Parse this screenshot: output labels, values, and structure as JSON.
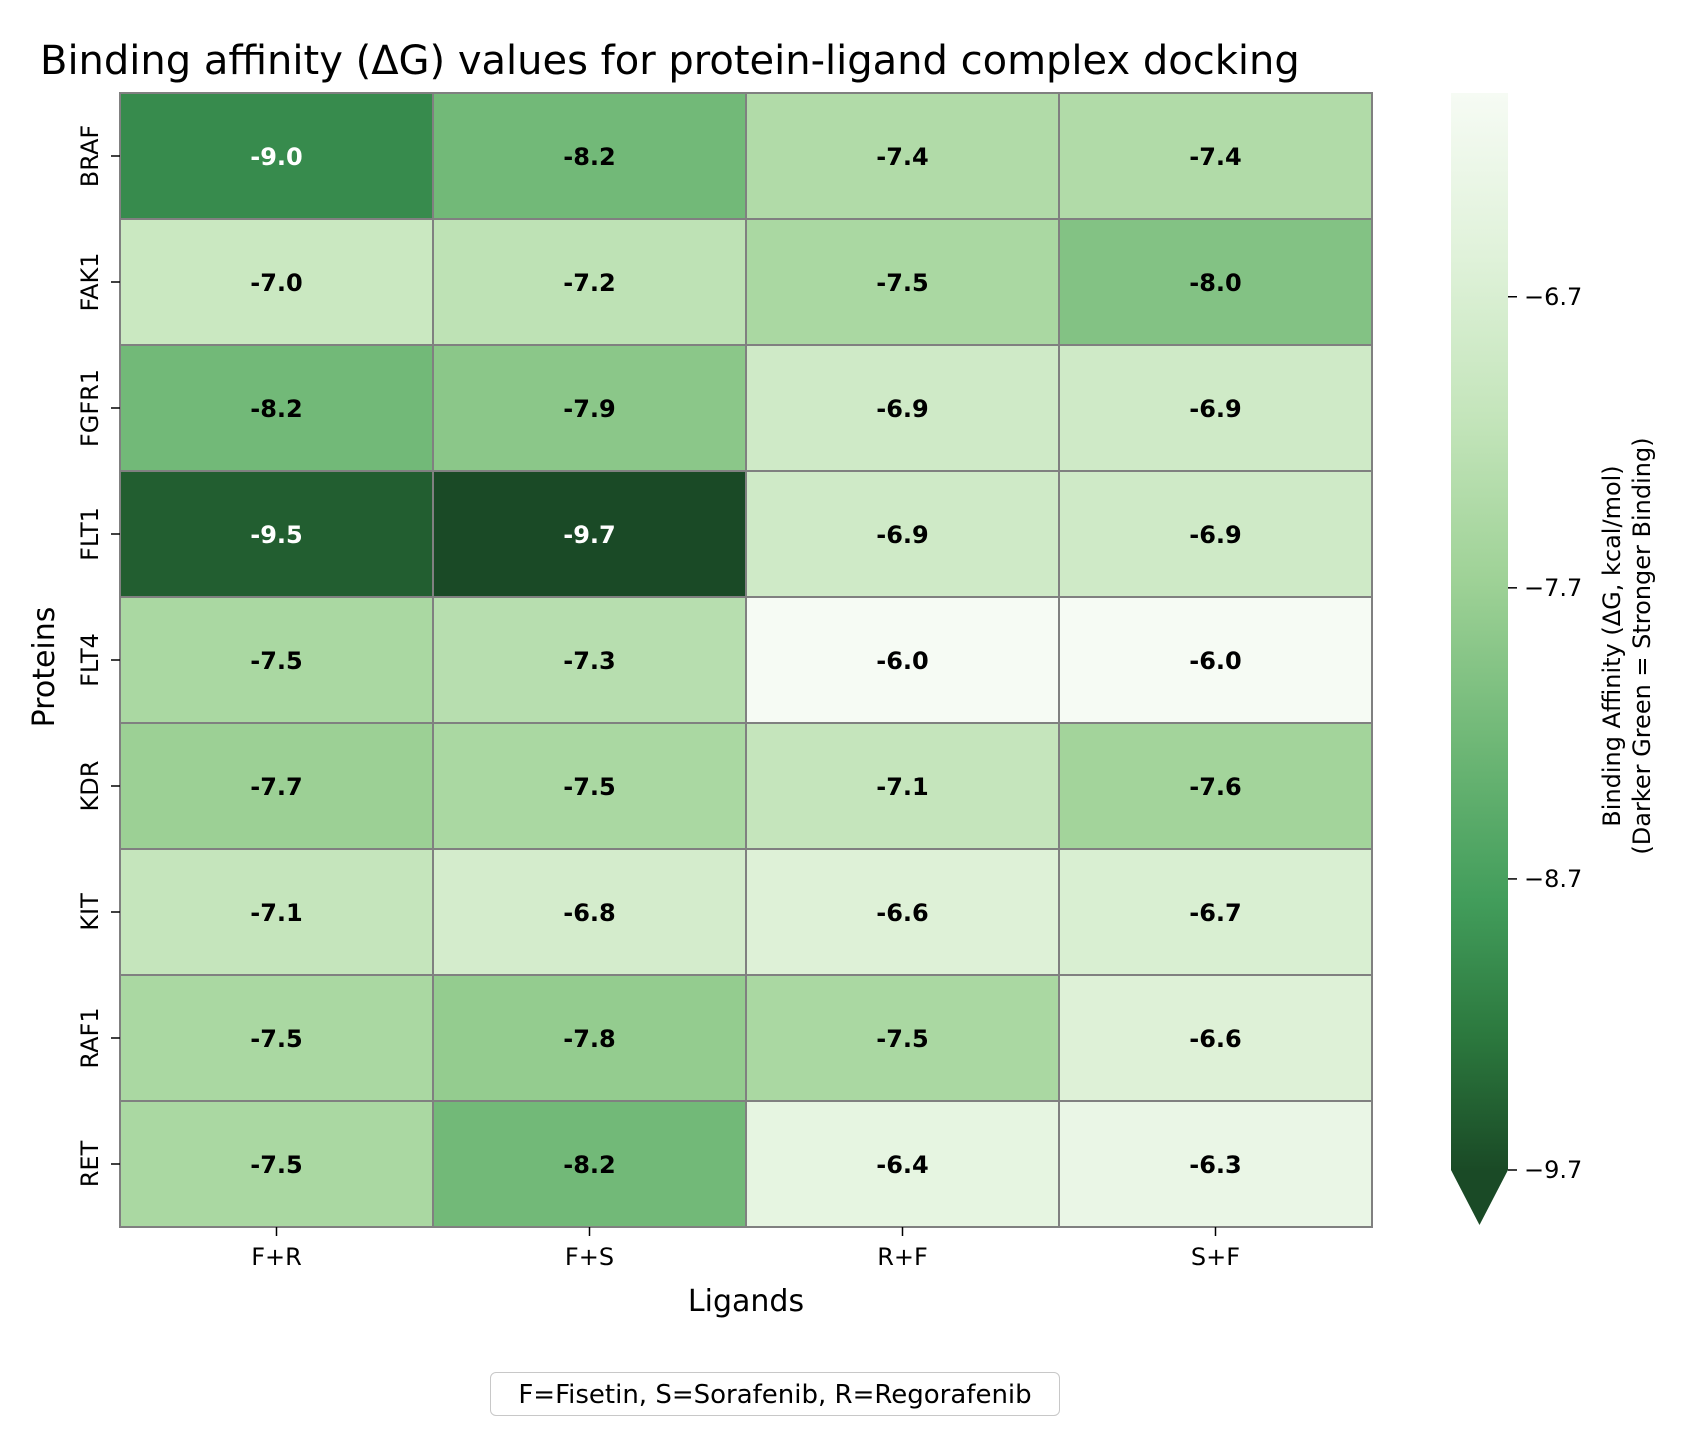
{
  "chart_data": {
    "type": "heatmap",
    "title": "Binding affinity (ΔG) values for protein-ligand complex docking",
    "xlabel": "Ligands",
    "ylabel": "Proteins",
    "x_categories": [
      "F+R",
      "F+S",
      "R+F",
      "S+F"
    ],
    "y_categories": [
      "BRAF",
      "FAK1",
      "FGFR1",
      "FLT1",
      "FLT4",
      "KDR",
      "KIT",
      "RAF1",
      "RET"
    ],
    "values": [
      [
        -9.0,
        -8.2,
        -7.4,
        -7.4
      ],
      [
        -7.0,
        -7.2,
        -7.5,
        -8.0
      ],
      [
        -8.2,
        -7.9,
        -6.9,
        -6.9
      ],
      [
        -9.5,
        -9.7,
        -6.9,
        -6.9
      ],
      [
        -7.5,
        -7.3,
        -6.0,
        -6.0
      ],
      [
        -7.7,
        -7.5,
        -7.1,
        -7.6
      ],
      [
        -7.1,
        -6.8,
        -6.6,
        -6.7
      ],
      [
        -7.5,
        -7.8,
        -7.5,
        -6.6
      ],
      [
        -7.5,
        -8.2,
        -6.4,
        -6.3
      ]
    ],
    "value_labels": [
      [
        "-9.0",
        "-8.2",
        "-7.4",
        "-7.4"
      ],
      [
        "-7.0",
        "-7.2",
        "-7.5",
        "-8.0"
      ],
      [
        "-8.2",
        "-7.9",
        "-6.9",
        "-6.9"
      ],
      [
        "-9.5",
        "-9.7",
        "-6.9",
        "-6.9"
      ],
      [
        "-7.5",
        "-7.3",
        "-6.0",
        "-6.0"
      ],
      [
        "-7.7",
        "-7.5",
        "-7.1",
        "-7.6"
      ],
      [
        "-7.1",
        "-6.8",
        "-6.6",
        "-6.7"
      ],
      [
        "-7.5",
        "-7.8",
        "-7.5",
        "-6.6"
      ],
      [
        "-7.5",
        "-8.2",
        "-6.4",
        "-6.3"
      ]
    ],
    "colorbar": {
      "label_line1": "Binding Affinity (ΔG, kcal/mol)",
      "label_line2": "(Darker Green = Stronger Binding)",
      "range": [
        -9.7,
        -6.0
      ],
      "ticks": [
        -6.7,
        -7.7,
        -8.7,
        -9.7
      ],
      "tick_labels": [
        "−6.7",
        "−7.7",
        "−8.7",
        "−9.7"
      ],
      "extend": "min",
      "colormap": "Greens (reversed)",
      "color_strongest": "#1a4a26",
      "color_weakest": "#f6fbf4"
    },
    "grid_line_color": "#808080",
    "legend_note": "F=Fisetin, S=Sorafenib, R=Regorafenib"
  }
}
